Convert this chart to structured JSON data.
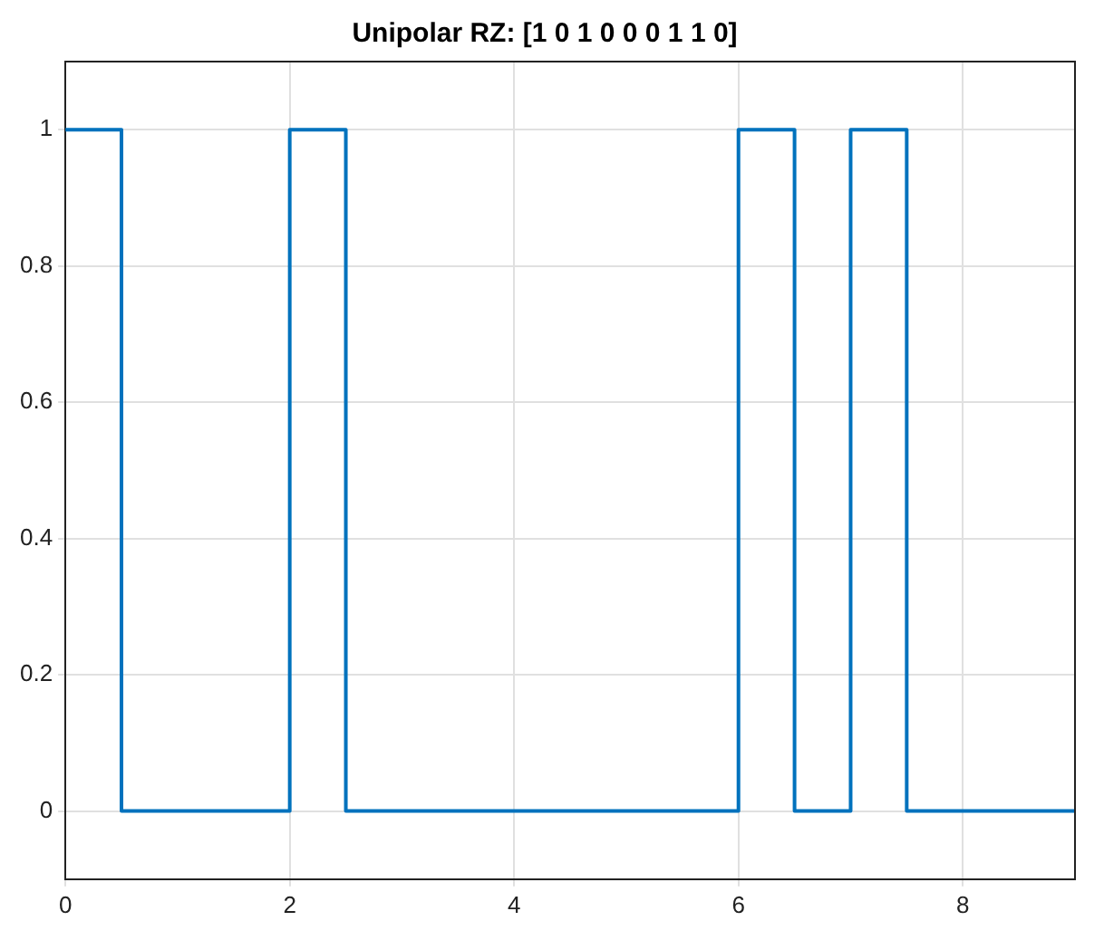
{
  "chart_data": {
    "type": "line",
    "title": "Unipolar RZ: [1 0 1 0 0 0 1 1 0]",
    "x": [
      0,
      0.5,
      0.5,
      2,
      2,
      2.5,
      2.5,
      6,
      6,
      6.5,
      6.5,
      7,
      7,
      7.5,
      7.5,
      9
    ],
    "series": [
      {
        "color": "#0072bd",
        "values": [
          1,
          1,
          0,
          0,
          1,
          1,
          0,
          0,
          1,
          1,
          0,
          0,
          1,
          1,
          0,
          0
        ]
      }
    ],
    "xlim": [
      0,
      9
    ],
    "ylim": [
      -0.1,
      1.1
    ],
    "xticks": [
      0,
      2,
      4,
      6,
      8
    ],
    "yticks": [
      0,
      0.2,
      0.4,
      0.6,
      0.8,
      1
    ],
    "grid": true,
    "legend": false,
    "marker": "none",
    "line_style": "solid"
  }
}
